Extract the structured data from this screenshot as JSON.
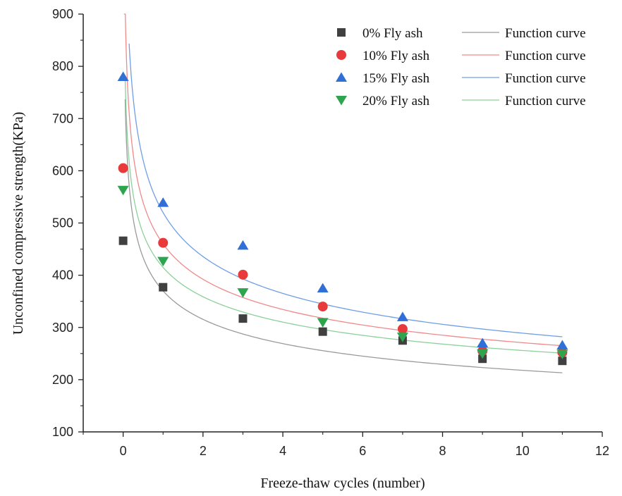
{
  "chart_data": {
    "type": "scatter",
    "title": "",
    "xlabel": "Freeze-thaw cycles (number)",
    "ylabel": "Unconfined compressive strength(KPa)",
    "xlim": [
      -1,
      12
    ],
    "ylim": [
      100,
      900
    ],
    "xticks": [
      0,
      2,
      4,
      6,
      8,
      10,
      12
    ],
    "yticks": [
      100,
      200,
      300,
      400,
      500,
      600,
      700,
      800,
      900
    ],
    "grid": false,
    "legend_position": "top-right",
    "x": [
      0,
      1,
      3,
      5,
      7,
      9,
      11
    ],
    "series": [
      {
        "name": "0%  Fly ash",
        "marker": "square",
        "color": "#404040",
        "curve_color": "#9a9a9a",
        "values": [
          466,
          377,
          317,
          292,
          275,
          240,
          236
        ],
        "fit": {
          "a": 370,
          "b": -0.23,
          "x_start": 0.05
        }
      },
      {
        "name": "10% Fly ash",
        "marker": "circle",
        "color": "#e8393b",
        "curve_color": "#f08a8a",
        "values": [
          605,
          462,
          401,
          340,
          297,
          255,
          252
        ],
        "fit": {
          "a": 460,
          "b": -0.23,
          "x_start": 0.02
        }
      },
      {
        "name": "15% Fly ash",
        "marker": "triangle-up",
        "color": "#2f6fd6",
        "curve_color": "#6f9ee6",
        "values": [
          780,
          539,
          457,
          375,
          320,
          270,
          266
        ],
        "fit": {
          "a": 520,
          "b": -0.255,
          "x_start": 0.15
        }
      },
      {
        "name": "20% Fly ash",
        "marker": "triangle-down",
        "color": "#2ea44f",
        "curve_color": "#8cd09a",
        "values": [
          563,
          427,
          367,
          310,
          282,
          250,
          249
        ],
        "fit": {
          "a": 415,
          "b": -0.21,
          "x_start": 0.05
        }
      }
    ],
    "curve_label": "Function curve"
  }
}
